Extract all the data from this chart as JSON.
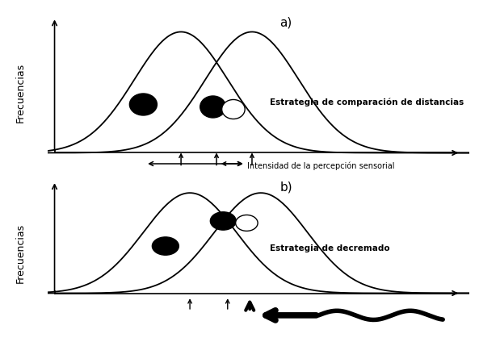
{
  "bg_color": "#ffffff",
  "panel_a_label": "a)",
  "panel_b_label": "b)",
  "ylabel": "Frecuencias",
  "panel_a_text": "Estrategia de comparación de distancias",
  "panel_b_text": "Estrategia de decremado",
  "intensity_text": "Intensidad de la percepción sensorial",
  "curve1_mu_a": 3.0,
  "curve2_mu_a": 4.6,
  "curve1_mu_b": 3.2,
  "curve2_mu_b": 4.8,
  "sigma_a": 1.05,
  "sigma_b": 1.05,
  "curve_color": "#000000",
  "ellipse_fill_black": "#000000",
  "ellipse_fill_white": "#ffffff",
  "ellipse_edge": "#000000",
  "xmin": 0.0,
  "xmax": 9.5,
  "ymin": -0.15,
  "ymax": 1.15
}
